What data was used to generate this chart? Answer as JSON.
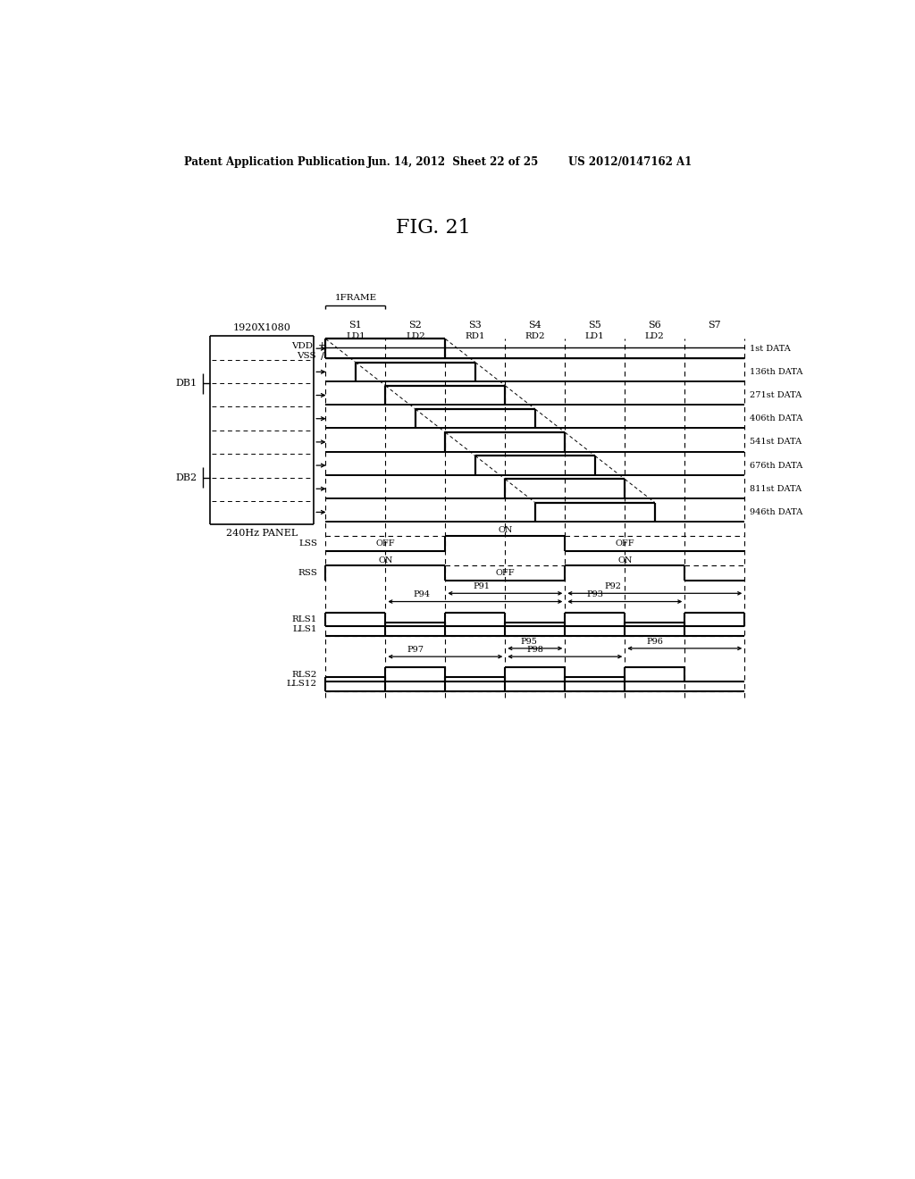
{
  "title": "FIG. 21",
  "header_left": "Patent Application Publication",
  "header_mid": "Jun. 14, 2012  Sheet 22 of 25",
  "header_right": "US 2012/0147162 A1",
  "bg_color": "#ffffff",
  "sub_labels_s": [
    "S1",
    "S2",
    "S3",
    "S4",
    "S5",
    "S6",
    "S7"
  ],
  "sub_labels_ld": [
    "LD1",
    "LD2",
    "RD1",
    "RD2",
    "LD1",
    "LD2"
  ],
  "data_labels": [
    "1st DATA",
    "136th DATA",
    "271st DATA",
    "406th DATA",
    "541st DATA",
    "676th DATA",
    "811st DATA",
    "946th DATA"
  ],
  "panel_label": "1920X1080",
  "panel_sub": "240Hz PANEL",
  "db_labels": [
    "DB1",
    "DB2"
  ],
  "frame_label": "1FRAME",
  "lss_labels": [
    "OFF",
    "ON",
    "OFF"
  ],
  "rss_labels": [
    "ON",
    "OFF",
    "ON"
  ],
  "period_labels": [
    "P91",
    "P92",
    "P93",
    "P94",
    "P95",
    "P96",
    "P97",
    "P98"
  ]
}
